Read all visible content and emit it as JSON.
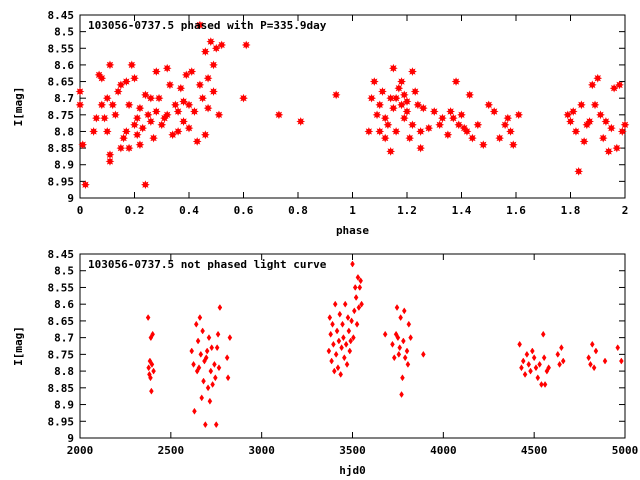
{
  "chart_data": [
    {
      "type": "scatter",
      "title": "103056-0737.5 phased with P=335.9day",
      "xlabel": "phase",
      "ylabel": "I[mag]",
      "xlim": [
        0,
        2
      ],
      "ylim": [
        8.45,
        9
      ],
      "y_inverted": true,
      "marker": "star",
      "color": "#ff0000",
      "xticks": [
        0,
        0.2,
        0.4,
        0.6,
        0.8,
        1,
        1.2,
        1.4,
        1.6,
        1.8,
        2
      ],
      "xtick_labels": [
        "0",
        "0.2",
        "0.4",
        "0.6",
        "0.8",
        "1",
        "1.2",
        "1.4",
        "1.6",
        "1.8",
        "2"
      ],
      "yticks": [
        8.45,
        8.5,
        8.55,
        8.6,
        8.65,
        8.7,
        8.75,
        8.8,
        8.85,
        8.9,
        8.95,
        9
      ],
      "ytick_labels": [
        "8.45",
        "8.5",
        "8.55",
        "8.6",
        "8.65",
        "8.7",
        "8.75",
        "8.8",
        "8.85",
        "8.9",
        "8.95",
        "9"
      ],
      "points": [
        [
          0.0,
          8.68
        ],
        [
          0.0,
          8.72
        ],
        [
          0.01,
          8.84
        ],
        [
          0.02,
          8.96
        ],
        [
          0.05,
          8.8
        ],
        [
          0.06,
          8.76
        ],
        [
          0.07,
          8.63
        ],
        [
          0.08,
          8.64
        ],
        [
          0.08,
          8.72
        ],
        [
          0.09,
          8.76
        ],
        [
          0.1,
          8.7
        ],
        [
          0.1,
          8.8
        ],
        [
          0.11,
          8.87
        ],
        [
          0.11,
          8.89
        ],
        [
          0.11,
          8.6
        ],
        [
          0.12,
          8.72
        ],
        [
          0.13,
          8.75
        ],
        [
          0.14,
          8.68
        ],
        [
          0.15,
          8.66
        ],
        [
          0.15,
          8.85
        ],
        [
          0.16,
          8.82
        ],
        [
          0.17,
          8.8
        ],
        [
          0.17,
          8.65
        ],
        [
          0.18,
          8.72
        ],
        [
          0.18,
          8.85
        ],
        [
          0.19,
          8.6
        ],
        [
          0.2,
          8.64
        ],
        [
          0.2,
          8.78
        ],
        [
          0.21,
          8.81
        ],
        [
          0.21,
          8.76
        ],
        [
          0.22,
          8.73
        ],
        [
          0.22,
          8.84
        ],
        [
          0.23,
          8.79
        ],
        [
          0.24,
          8.69
        ],
        [
          0.24,
          8.96
        ],
        [
          0.25,
          8.75
        ],
        [
          0.26,
          8.77
        ],
        [
          0.26,
          8.7
        ],
        [
          0.27,
          8.82
        ],
        [
          0.28,
          8.62
        ],
        [
          0.28,
          8.74
        ],
        [
          0.29,
          8.7
        ],
        [
          0.3,
          8.78
        ],
        [
          0.31,
          8.76
        ],
        [
          0.32,
          8.61
        ],
        [
          0.32,
          8.75
        ],
        [
          0.33,
          8.66
        ],
        [
          0.34,
          8.81
        ],
        [
          0.35,
          8.72
        ],
        [
          0.36,
          8.74
        ],
        [
          0.36,
          8.8
        ],
        [
          0.37,
          8.67
        ],
        [
          0.38,
          8.71
        ],
        [
          0.38,
          8.77
        ],
        [
          0.39,
          8.63
        ],
        [
          0.4,
          8.72
        ],
        [
          0.4,
          8.79
        ],
        [
          0.41,
          8.62
        ],
        [
          0.42,
          8.74
        ],
        [
          0.43,
          8.83
        ],
        [
          0.44,
          8.66
        ],
        [
          0.44,
          8.48
        ],
        [
          0.45,
          8.7
        ],
        [
          0.46,
          8.56
        ],
        [
          0.46,
          8.81
        ],
        [
          0.47,
          8.64
        ],
        [
          0.47,
          8.73
        ],
        [
          0.48,
          8.53
        ],
        [
          0.49,
          8.6
        ],
        [
          0.49,
          8.68
        ],
        [
          0.5,
          8.55
        ],
        [
          0.51,
          8.75
        ],
        [
          0.52,
          8.54
        ],
        [
          0.6,
          8.7
        ],
        [
          0.61,
          8.54
        ],
        [
          0.73,
          8.75
        ],
        [
          0.81,
          8.77
        ],
        [
          0.94,
          8.69
        ],
        [
          1.06,
          8.8
        ],
        [
          1.07,
          8.7
        ],
        [
          1.08,
          8.65
        ],
        [
          1.09,
          8.75
        ],
        [
          1.1,
          8.72
        ],
        [
          1.1,
          8.8
        ],
        [
          1.11,
          8.68
        ],
        [
          1.12,
          8.76
        ],
        [
          1.12,
          8.82
        ],
        [
          1.13,
          8.78
        ],
        [
          1.14,
          8.7
        ],
        [
          1.14,
          8.86
        ],
        [
          1.15,
          8.73
        ],
        [
          1.15,
          8.61
        ],
        [
          1.16,
          8.7
        ],
        [
          1.16,
          8.8
        ],
        [
          1.17,
          8.67
        ],
        [
          1.18,
          8.72
        ],
        [
          1.18,
          8.65
        ],
        [
          1.19,
          8.76
        ],
        [
          1.19,
          8.69
        ],
        [
          1.2,
          8.74
        ],
        [
          1.2,
          8.71
        ],
        [
          1.21,
          8.82
        ],
        [
          1.22,
          8.62
        ],
        [
          1.22,
          8.78
        ],
        [
          1.23,
          8.68
        ],
        [
          1.24,
          8.72
        ],
        [
          1.25,
          8.8
        ],
        [
          1.25,
          8.85
        ],
        [
          1.26,
          8.73
        ],
        [
          1.28,
          8.79
        ],
        [
          1.3,
          8.74
        ],
        [
          1.32,
          8.78
        ],
        [
          1.33,
          8.76
        ],
        [
          1.35,
          8.81
        ],
        [
          1.36,
          8.74
        ],
        [
          1.37,
          8.76
        ],
        [
          1.38,
          8.65
        ],
        [
          1.39,
          8.78
        ],
        [
          1.4,
          8.75
        ],
        [
          1.41,
          8.79
        ],
        [
          1.42,
          8.8
        ],
        [
          1.43,
          8.69
        ],
        [
          1.44,
          8.82
        ],
        [
          1.46,
          8.78
        ],
        [
          1.48,
          8.84
        ],
        [
          1.5,
          8.72
        ],
        [
          1.52,
          8.74
        ],
        [
          1.54,
          8.82
        ],
        [
          1.56,
          8.78
        ],
        [
          1.57,
          8.76
        ],
        [
          1.58,
          8.8
        ],
        [
          1.59,
          8.84
        ],
        [
          1.61,
          8.75
        ],
        [
          1.79,
          8.75
        ],
        [
          1.8,
          8.77
        ],
        [
          1.81,
          8.74
        ],
        [
          1.82,
          8.8
        ],
        [
          1.83,
          8.92
        ],
        [
          1.84,
          8.72
        ],
        [
          1.85,
          8.83
        ],
        [
          1.86,
          8.78
        ],
        [
          1.87,
          8.77
        ],
        [
          1.88,
          8.66
        ],
        [
          1.89,
          8.72
        ],
        [
          1.9,
          8.64
        ],
        [
          1.91,
          8.75
        ],
        [
          1.92,
          8.82
        ],
        [
          1.93,
          8.77
        ],
        [
          1.94,
          8.86
        ],
        [
          1.95,
          8.79
        ],
        [
          1.96,
          8.67
        ],
        [
          1.97,
          8.85
        ],
        [
          1.98,
          8.66
        ],
        [
          1.99,
          8.8
        ],
        [
          2.0,
          8.78
        ]
      ]
    },
    {
      "type": "scatter",
      "title": "103056-0737.5 not phased light curve",
      "xlabel": "hjd0",
      "ylabel": "I[mag]",
      "xlim": [
        2000,
        5000
      ],
      "ylim": [
        8.45,
        9
      ],
      "y_inverted": true,
      "marker": "diamond",
      "color": "#ff0000",
      "xticks": [
        2000,
        2500,
        3000,
        3500,
        4000,
        4500,
        5000
      ],
      "xtick_labels": [
        "2000",
        "2500",
        "3000",
        "3500",
        "4000",
        "4500",
        "5000"
      ],
      "yticks": [
        8.45,
        8.5,
        8.55,
        8.6,
        8.65,
        8.7,
        8.75,
        8.8,
        8.85,
        8.9,
        8.95,
        9
      ],
      "ytick_labels": [
        "8.45",
        "8.5",
        "8.55",
        "8.6",
        "8.65",
        "8.7",
        "8.75",
        "8.8",
        "8.85",
        "8.9",
        "8.95",
        "9"
      ],
      "points": [
        [
          2375,
          8.64
        ],
        [
          2378,
          8.79
        ],
        [
          2382,
          8.81
        ],
        [
          2385,
          8.77
        ],
        [
          2388,
          8.82
        ],
        [
          2390,
          8.7
        ],
        [
          2393,
          8.86
        ],
        [
          2396,
          8.78
        ],
        [
          2400,
          8.69
        ],
        [
          2405,
          8.8
        ],
        [
          2615,
          8.74
        ],
        [
          2625,
          8.78
        ],
        [
          2630,
          8.92
        ],
        [
          2640,
          8.66
        ],
        [
          2645,
          8.8
        ],
        [
          2650,
          8.71
        ],
        [
          2655,
          8.79
        ],
        [
          2660,
          8.64
        ],
        [
          2665,
          8.75
        ],
        [
          2670,
          8.88
        ],
        [
          2675,
          8.68
        ],
        [
          2680,
          8.83
        ],
        [
          2685,
          8.77
        ],
        [
          2690,
          8.96
        ],
        [
          2695,
          8.76
        ],
        [
          2700,
          8.74
        ],
        [
          2705,
          8.85
        ],
        [
          2710,
          8.7
        ],
        [
          2715,
          8.89
        ],
        [
          2720,
          8.8
        ],
        [
          2725,
          8.73
        ],
        [
          2730,
          8.84
        ],
        [
          2740,
          8.78
        ],
        [
          2745,
          8.82
        ],
        [
          2750,
          8.96
        ],
        [
          2755,
          8.73
        ],
        [
          2760,
          8.69
        ],
        [
          2765,
          8.79
        ],
        [
          2770,
          8.61
        ],
        [
          2810,
          8.76
        ],
        [
          2815,
          8.82
        ],
        [
          2825,
          8.7
        ],
        [
          3370,
          8.74
        ],
        [
          3375,
          8.64
        ],
        [
          3380,
          8.69
        ],
        [
          3385,
          8.77
        ],
        [
          3390,
          8.66
        ],
        [
          3395,
          8.72
        ],
        [
          3400,
          8.8
        ],
        [
          3405,
          8.6
        ],
        [
          3410,
          8.75
        ],
        [
          3415,
          8.68
        ],
        [
          3420,
          8.79
        ],
        [
          3425,
          8.71
        ],
        [
          3430,
          8.63
        ],
        [
          3435,
          8.81
        ],
        [
          3440,
          8.73
        ],
        [
          3445,
          8.66
        ],
        [
          3450,
          8.7
        ],
        [
          3455,
          8.76
        ],
        [
          3460,
          8.6
        ],
        [
          3465,
          8.72
        ],
        [
          3470,
          8.78
        ],
        [
          3475,
          8.64
        ],
        [
          3480,
          8.68
        ],
        [
          3485,
          8.74
        ],
        [
          3490,
          8.71
        ],
        [
          3495,
          8.65
        ],
        [
          3500,
          8.48
        ],
        [
          3505,
          8.7
        ],
        [
          3510,
          8.62
        ],
        [
          3515,
          8.55
        ],
        [
          3520,
          8.58
        ],
        [
          3525,
          8.66
        ],
        [
          3530,
          8.52
        ],
        [
          3535,
          8.61
        ],
        [
          3540,
          8.55
        ],
        [
          3545,
          8.53
        ],
        [
          3550,
          8.6
        ],
        [
          3680,
          8.69
        ],
        [
          3720,
          8.72
        ],
        [
          3730,
          8.76
        ],
        [
          3740,
          8.69
        ],
        [
          3745,
          8.61
        ],
        [
          3750,
          8.7
        ],
        [
          3755,
          8.75
        ],
        [
          3760,
          8.73
        ],
        [
          3765,
          8.64
        ],
        [
          3770,
          8.87
        ],
        [
          3775,
          8.82
        ],
        [
          3780,
          8.71
        ],
        [
          3785,
          8.62
        ],
        [
          3790,
          8.76
        ],
        [
          3800,
          8.74
        ],
        [
          3805,
          8.78
        ],
        [
          3810,
          8.66
        ],
        [
          3820,
          8.7
        ],
        [
          3890,
          8.75
        ],
        [
          4420,
          8.72
        ],
        [
          4430,
          8.79
        ],
        [
          4440,
          8.77
        ],
        [
          4450,
          8.81
        ],
        [
          4460,
          8.75
        ],
        [
          4470,
          8.78
        ],
        [
          4480,
          8.8
        ],
        [
          4490,
          8.74
        ],
        [
          4500,
          8.76
        ],
        [
          4510,
          8.79
        ],
        [
          4520,
          8.82
        ],
        [
          4530,
          8.78
        ],
        [
          4540,
          8.84
        ],
        [
          4550,
          8.69
        ],
        [
          4555,
          8.76
        ],
        [
          4560,
          8.84
        ],
        [
          4570,
          8.8
        ],
        [
          4580,
          8.79
        ],
        [
          4630,
          8.75
        ],
        [
          4640,
          8.78
        ],
        [
          4650,
          8.73
        ],
        [
          4660,
          8.77
        ],
        [
          4800,
          8.76
        ],
        [
          4810,
          8.78
        ],
        [
          4820,
          8.72
        ],
        [
          4830,
          8.79
        ],
        [
          4840,
          8.74
        ],
        [
          4890,
          8.77
        ],
        [
          4960,
          8.73
        ],
        [
          4980,
          8.77
        ]
      ]
    }
  ]
}
